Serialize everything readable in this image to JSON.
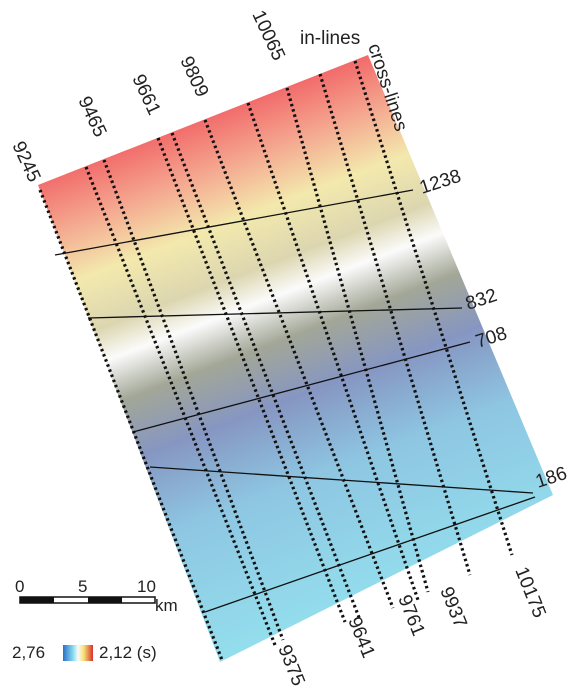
{
  "labels": {
    "in_lines": "in-lines",
    "cross_lines": "cross-lines"
  },
  "top_inlines": [
    "9245",
    "9465",
    "9661",
    "9809",
    "10065"
  ],
  "bottom_inlines": [
    "9375",
    "9641",
    "9761",
    "9937",
    "10175"
  ],
  "crosslines": [
    "1238",
    "832",
    "708",
    "186"
  ],
  "scale": {
    "ticks": [
      "0",
      "5",
      "10"
    ],
    "unit": "km"
  },
  "legend": {
    "min": "2,76",
    "max": "2,12 (s)"
  }
}
